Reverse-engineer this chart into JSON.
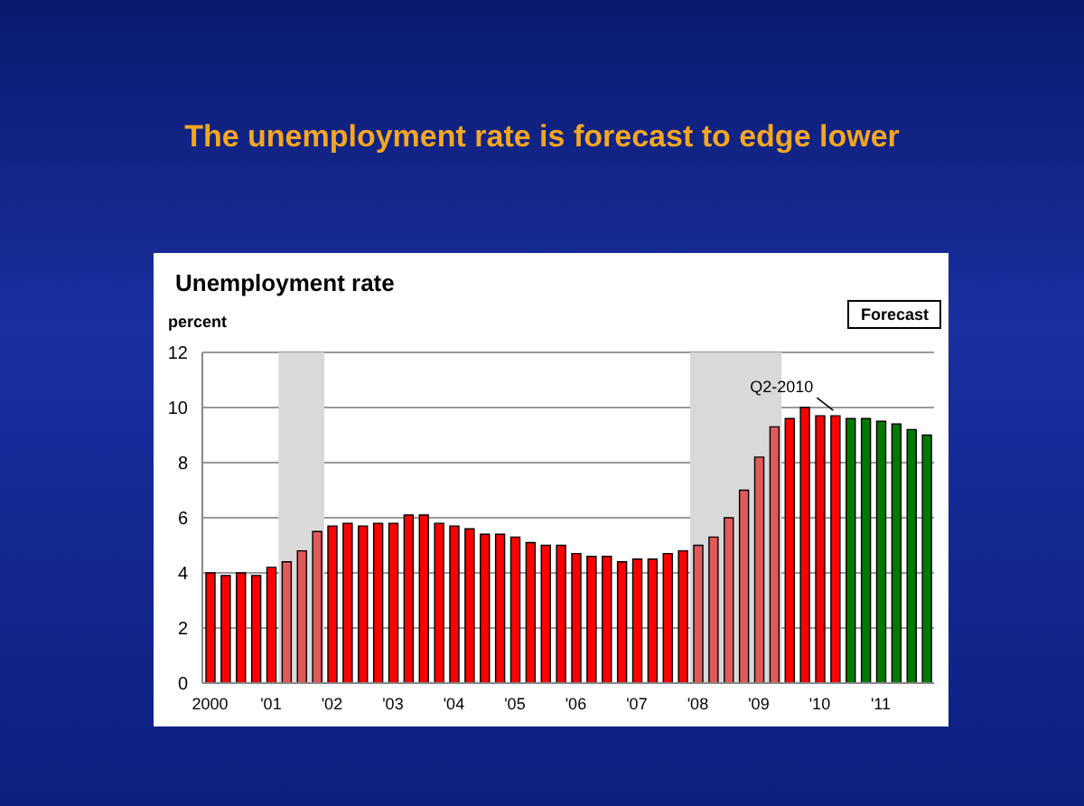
{
  "chart_data": {
    "type": "bar",
    "title": "The unemployment rate is forecast to edge lower",
    "subtitle": "Unemployment rate",
    "ylabel": "percent",
    "x": [
      2000,
      2000.25,
      2000.5,
      2000.75,
      2001,
      2001.25,
      2001.5,
      2001.75,
      2002,
      2002.25,
      2002.5,
      2002.75,
      2003,
      2003.25,
      2003.5,
      2003.75,
      2004,
      2004.25,
      2004.5,
      2004.75,
      2005,
      2005.25,
      2005.5,
      2005.75,
      2006,
      2006.25,
      2006.5,
      2006.75,
      2007,
      2007.25,
      2007.5,
      2007.75,
      2008,
      2008.25,
      2008.5,
      2008.75,
      2009,
      2009.25,
      2009.5,
      2009.75,
      2010,
      2010.25,
      2010.5,
      2010.75,
      2011,
      2011.25,
      2011.5,
      2011.75
    ],
    "values": [
      4.0,
      3.9,
      4.0,
      3.9,
      4.2,
      4.4,
      4.8,
      5.5,
      5.7,
      5.8,
      5.7,
      5.8,
      5.8,
      6.1,
      6.1,
      5.8,
      5.7,
      5.6,
      5.4,
      5.4,
      5.3,
      5.1,
      5.0,
      5.0,
      4.7,
      4.6,
      4.6,
      4.4,
      4.5,
      4.5,
      4.7,
      4.8,
      5.0,
      5.3,
      6.0,
      7.0,
      8.2,
      9.3,
      9.6,
      10.0,
      9.7,
      9.7,
      9.6,
      9.6,
      9.5,
      9.4,
      9.2,
      9.0
    ],
    "colors": [
      "#ff0000",
      "#ff0000",
      "#ff0000",
      "#ff0000",
      "#ff0000",
      "#e05a5a",
      "#e05a5a",
      "#e05a5a",
      "#ff0000",
      "#ff0000",
      "#ff0000",
      "#ff0000",
      "#ff0000",
      "#ff0000",
      "#ff0000",
      "#ff0000",
      "#ff0000",
      "#ff0000",
      "#ff0000",
      "#ff0000",
      "#ff0000",
      "#ff0000",
      "#ff0000",
      "#ff0000",
      "#ff0000",
      "#ff0000",
      "#ff0000",
      "#ff0000",
      "#ff0000",
      "#ff0000",
      "#ff0000",
      "#ff0000",
      "#e05a5a",
      "#e05a5a",
      "#e05a5a",
      "#e05a5a",
      "#e05a5a",
      "#e05a5a",
      "#ff0000",
      "#ff0000",
      "#ff0000",
      "#ff0000",
      "#007a00",
      "#007a00",
      "#007a00",
      "#007a00",
      "#007a00",
      "#007a00"
    ],
    "xlim": [
      1999.875,
      2011.875
    ],
    "xticks": [
      {
        "value": 2000,
        "label": "2000"
      },
      {
        "value": 2001,
        "label": "'01"
      },
      {
        "value": 2002,
        "label": "'02"
      },
      {
        "value": 2003,
        "label": "'03"
      },
      {
        "value": 2004,
        "label": "'04"
      },
      {
        "value": 2005,
        "label": "'05"
      },
      {
        "value": 2006,
        "label": "'06"
      },
      {
        "value": 2007,
        "label": "'07"
      },
      {
        "value": 2008,
        "label": "'08"
      },
      {
        "value": 2009,
        "label": "'09"
      },
      {
        "value": 2010,
        "label": "'10"
      },
      {
        "value": 2011,
        "label": "'11"
      }
    ],
    "ylim": [
      0,
      12
    ],
    "yticks": [
      0,
      2,
      4,
      6,
      8,
      10,
      12
    ],
    "grid": "y",
    "bands": [
      {
        "axis": "x",
        "from": 2001.125,
        "to": 2001.875,
        "color": "#d9d9d9"
      },
      {
        "axis": "x",
        "from": 2007.875,
        "to": 2009.375,
        "color": "#d9d9d9"
      }
    ],
    "annotations": [
      {
        "text": "Q2-2010",
        "x": 2010.25,
        "y": 9.7
      },
      "Forecast"
    ]
  }
}
